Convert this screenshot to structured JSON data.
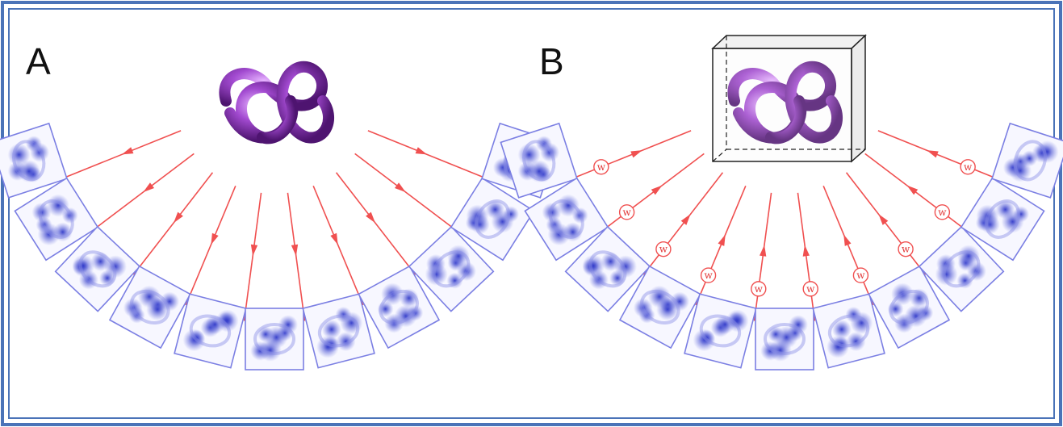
{
  "panels": [
    {
      "id": "A",
      "label": "A",
      "arrow_direction": "projection",
      "ray_count": 10
    },
    {
      "id": "B",
      "label": "B",
      "arrow_direction": "back_projection",
      "ray_count": 10,
      "weight_symbol": "w"
    }
  ],
  "colors": {
    "frame": "#4a73b8",
    "arrow": "#f05050",
    "knot": "#9b3fc4",
    "projection_frame": "#7b7fe3",
    "projection_blob": "#4a55d6"
  },
  "icons": [
    "knot-object-icon",
    "projection-image-icon",
    "reconstruction-box-icon"
  ]
}
